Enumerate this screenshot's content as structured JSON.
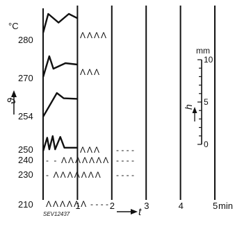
{
  "chart_data": {
    "type": "line",
    "y_unit": "°C",
    "y_symbol": "ϑ",
    "x_symbol": "t",
    "x_unit": "min",
    "x_ticks": [
      "1",
      "2",
      "3",
      "4",
      "5"
    ],
    "rows": [
      {
        "temp": "280",
        "trace": [
          [
            0,
            0.35
          ],
          [
            0.15,
            1.0
          ],
          [
            0.45,
            0.7
          ],
          [
            0.75,
            1.0
          ],
          [
            1.0,
            0.85
          ]
        ],
        "marks": "ΛΛΛΛ",
        "dashes": ""
      },
      {
        "temp": "270",
        "trace": [
          [
            0,
            0.15
          ],
          [
            0.18,
            0.9
          ],
          [
            0.3,
            0.45
          ],
          [
            0.65,
            0.65
          ],
          [
            1.0,
            0.6
          ]
        ],
        "marks": "ΛΛΛ",
        "dashes": ""
      },
      {
        "temp": "254",
        "trace": [
          [
            0,
            0.1
          ],
          [
            0.4,
            1.0
          ],
          [
            0.6,
            0.8
          ],
          [
            1.0,
            0.78
          ]
        ],
        "marks": "",
        "dashes": ""
      },
      {
        "temp": "250",
        "trace": [
          [
            0,
            0.1
          ],
          [
            0.12,
            0.9
          ],
          [
            0.18,
            0.2
          ],
          [
            0.28,
            1.0
          ],
          [
            0.35,
            0.2
          ],
          [
            0.5,
            0.95
          ],
          [
            0.62,
            0.3
          ],
          [
            1.0,
            0.3
          ]
        ],
        "marks": "ΛΛΛ",
        "dashes": "- - - -"
      },
      {
        "temp": "240",
        "trace": [],
        "marks": "- - ΛΛΛΛΛΛΛ",
        "dashes": "- - - -"
      },
      {
        "temp": "230",
        "trace": [],
        "marks": "- ΛΛΛΛΛΛΛ",
        "dashes": "- - - -"
      },
      {
        "temp": "210",
        "trace": [],
        "marks": "ΛΛΛΛΛΛ",
        "dashes": "- - - -"
      }
    ],
    "scale": {
      "unit": "mm",
      "symbol": "h",
      "ticks": [
        "10",
        "5",
        "0"
      ]
    },
    "caption": "SEV12437"
  }
}
